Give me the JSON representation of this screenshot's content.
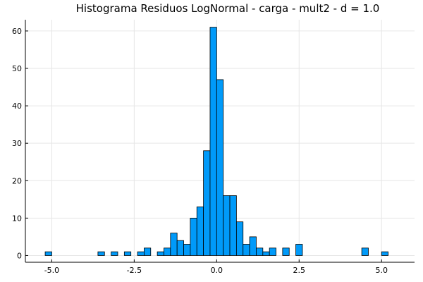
{
  "chart_data": {
    "type": "bar",
    "title": "Histograma Residuos LogNormal - carga - mult2 - d = 1.0",
    "xlabel": "",
    "ylabel": "",
    "bar_color": "#009af9",
    "edge_color": "#000000",
    "xlim": [
      -5.8,
      6.0
    ],
    "ylim": [
      -1.8,
      63
    ],
    "grid": true,
    "legend": "none",
    "x_ticks": [
      {
        "value": -5.0,
        "label": "-5.0"
      },
      {
        "value": -2.5,
        "label": "-2.5"
      },
      {
        "value": 0.0,
        "label": "0.0"
      },
      {
        "value": 2.5,
        "label": "2.5"
      },
      {
        "value": 5.0,
        "label": "5.0"
      }
    ],
    "y_ticks": [
      {
        "value": 0,
        "label": "0"
      },
      {
        "value": 10,
        "label": "10"
      },
      {
        "value": 20,
        "label": "20"
      },
      {
        "value": 30,
        "label": "30"
      },
      {
        "value": 40,
        "label": "40"
      },
      {
        "value": 50,
        "label": "50"
      },
      {
        "value": 60,
        "label": "60"
      }
    ],
    "bin_start": -5.2,
    "bin_width": 0.2,
    "counts": [
      1,
      0,
      0,
      0,
      0,
      0,
      0,
      0,
      1,
      0,
      1,
      0,
      1,
      0,
      1,
      2,
      0,
      1,
      2,
      6,
      4,
      3,
      10,
      13,
      28,
      61,
      47,
      16,
      16,
      9,
      3,
      5,
      2,
      1,
      2,
      0,
      2,
      0,
      3,
      0,
      0,
      0,
      0,
      0,
      0,
      0,
      0,
      0,
      2,
      0,
      0,
      1
    ]
  }
}
